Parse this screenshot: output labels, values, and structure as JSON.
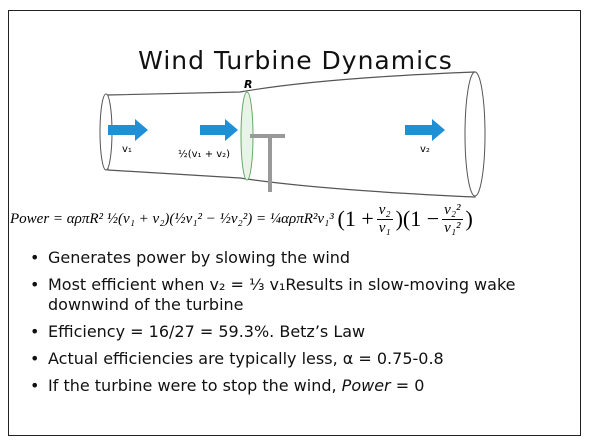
{
  "title": "Wind Turbine Dynamics",
  "diagram": {
    "radius_label": "R",
    "inlet_label": "v₁",
    "disk_label": "½(v₁ + v₂)",
    "outlet_label": "v₂"
  },
  "equation": {
    "lhs": "Power",
    "middle": "= αρπR² ½(v₁ + v₂)(½v₁² − ½v₂²) = ¼αρπR²v₁³",
    "open1": "(1 +",
    "num1": "v₂",
    "den1": "v₁",
    "open2": ")(1 −",
    "num2": "v₂²",
    "den2": "v₁²",
    "close": ")"
  },
  "bullets": [
    "Generates power by slowing the wind",
    "Most efficient when v₂ = ⅓ v₁Results in slow-moving wake downwind of the turbine",
    "Efficiency = 16/27 = 59.3%. Betz’s Law",
    "Actual efficiencies are typically less, α = 0.75-0.8",
    [
      "If the turbine were to stop the wind, ",
      "Power",
      " = 0"
    ]
  ]
}
